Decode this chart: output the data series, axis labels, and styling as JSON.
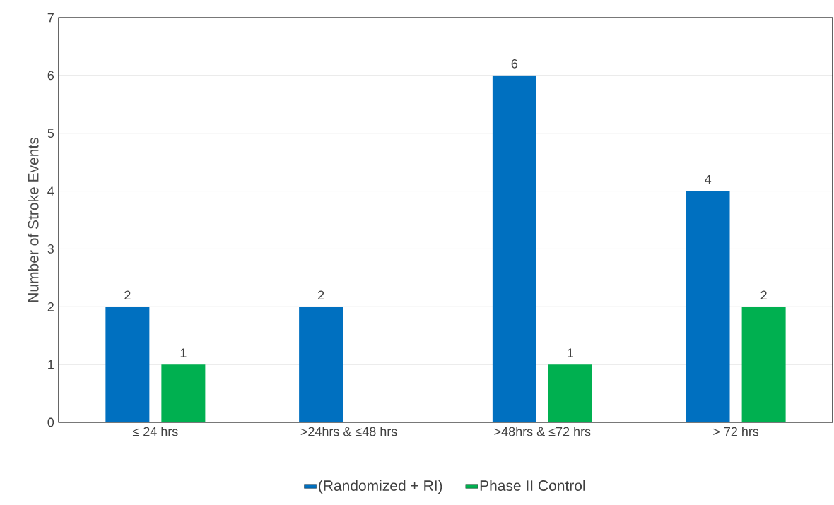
{
  "chart_data": {
    "type": "bar",
    "ylabel": "Number of Stroke Events",
    "categories": [
      "≤ 24 hrs",
      ">24hrs & ≤48 hrs",
      ">48hrs & ≤72 hrs",
      "> 72 hrs"
    ],
    "series": [
      {
        "name": "(Randomized + RI)",
        "color": "#0070c0",
        "values": [
          2,
          2,
          6,
          4
        ],
        "value_labels": [
          "2",
          "2",
          "6",
          "4"
        ]
      },
      {
        "name": "Phase II Control",
        "color": "#00b050",
        "values": [
          1,
          0,
          1,
          2
        ],
        "value_labels": [
          "1",
          null,
          "1",
          "2"
        ]
      }
    ],
    "ylim": [
      0,
      7
    ],
    "yticks": [
      0,
      1,
      2,
      3,
      4,
      5,
      6,
      7
    ],
    "grid": "y",
    "legend": "bottom"
  }
}
